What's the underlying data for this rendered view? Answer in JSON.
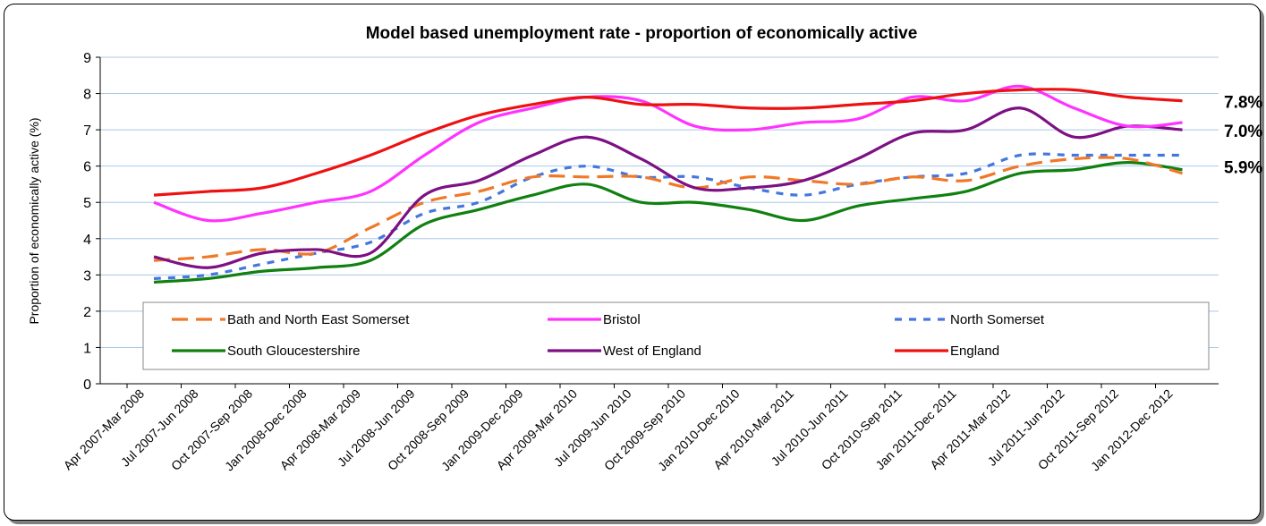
{
  "chart_data": {
    "type": "line",
    "title": "Model based unemployment rate - proportion of economically active",
    "ylabel": "Proportion of economically active (%)",
    "xlabel": "",
    "ylim": [
      0,
      9
    ],
    "yticks": [
      "0",
      "1",
      "2",
      "3",
      "4",
      "5",
      "6",
      "7",
      "8",
      "9"
    ],
    "grid": true,
    "legend_position": "bottom-inside",
    "x": [
      "Apr 2007-Mar 2008",
      "Jul 2007-Jun 2008",
      "Oct 2007-Sep 2008",
      "Jan 2008-Dec 2008",
      "Apr 2008-Mar 2009",
      "Jul 2008-Jun 2009",
      "Oct 2008-Sep 2009",
      "Jan 2009-Dec 2009",
      "Apr 2009-Mar 2010",
      "Jul 2009-Jun 2010",
      "Oct 2009-Sep 2010",
      "Jan 2010-Dec 2010",
      "Apr 2010-Mar 2011",
      "Jul 2010-Jun 2011",
      "Oct 2010-Sep 2011",
      "Jan 2011-Dec 2011",
      "Apr 2011-Mar 2012",
      "Jul 2011-Jun 2012",
      "Oct 2011-Sep 2012",
      "Jan 2012-Dec 2012"
    ],
    "series": [
      {
        "name": "Bath and North East Somerset",
        "color": "#f07828",
        "dash": "long",
        "values": [
          3.4,
          3.5,
          3.7,
          3.6,
          4.3,
          5.0,
          5.3,
          5.7,
          5.7,
          5.7,
          5.4,
          5.7,
          5.6,
          5.5,
          5.7,
          5.6,
          6.0,
          6.2,
          6.2,
          5.8
        ]
      },
      {
        "name": "Bristol",
        "color": "#ff33ff",
        "dash": "solid",
        "values": [
          5.0,
          4.5,
          4.7,
          5.0,
          5.3,
          6.3,
          7.2,
          7.6,
          7.9,
          7.8,
          7.1,
          7.0,
          7.2,
          7.3,
          7.9,
          7.8,
          8.2,
          7.6,
          7.1,
          7.2
        ]
      },
      {
        "name": "North Somerset",
        "color": "#4477dd",
        "dash": "short",
        "values": [
          2.9,
          3.0,
          3.3,
          3.6,
          3.9,
          4.7,
          5.0,
          5.7,
          6.0,
          5.7,
          5.7,
          5.4,
          5.2,
          5.5,
          5.7,
          5.8,
          6.3,
          6.3,
          6.3,
          6.3
        ]
      },
      {
        "name": "South Gloucestershire",
        "color": "#108010",
        "dash": "solid",
        "values": [
          2.8,
          2.9,
          3.1,
          3.2,
          3.4,
          4.4,
          4.8,
          5.2,
          5.5,
          5.0,
          5.0,
          4.8,
          4.5,
          4.9,
          5.1,
          5.3,
          5.8,
          5.9,
          6.1,
          5.9
        ]
      },
      {
        "name": "West of England",
        "color": "#7d1083",
        "dash": "solid",
        "values": [
          3.5,
          3.2,
          3.6,
          3.7,
          3.6,
          5.2,
          5.6,
          6.3,
          6.8,
          6.2,
          5.4,
          5.4,
          5.6,
          6.2,
          6.9,
          7.0,
          7.6,
          6.8,
          7.1,
          7.0
        ]
      },
      {
        "name": "England",
        "color": "#ee1111",
        "dash": "solid",
        "values": [
          5.2,
          5.3,
          5.4,
          5.8,
          6.3,
          6.9,
          7.4,
          7.7,
          7.9,
          7.7,
          7.7,
          7.6,
          7.6,
          7.7,
          7.8,
          8.0,
          8.1,
          8.1,
          7.9,
          7.8
        ]
      }
    ],
    "end_labels": [
      "7.8%",
      "7.0%",
      "5.9%"
    ]
  }
}
